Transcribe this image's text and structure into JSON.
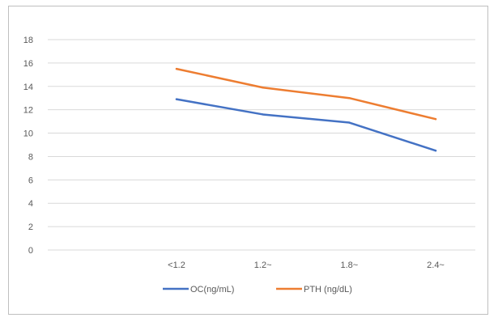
{
  "chart_data": {
    "type": "line",
    "title": "",
    "xlabel": "",
    "ylabel": "",
    "categories": [
      "<1.2",
      "1.2~",
      "1.8~",
      "2.4~"
    ],
    "ylim": [
      0,
      18
    ],
    "yticks": [
      0,
      2,
      4,
      6,
      8,
      10,
      12,
      14,
      16,
      18
    ],
    "grid": true,
    "legend_position": "bottom",
    "series": [
      {
        "name": "OC(ng/mL)",
        "values": [
          12.9,
          11.6,
          10.9,
          8.5
        ],
        "color": "#4472c4"
      },
      {
        "name": "PTH (ng/dL)",
        "values": [
          15.5,
          13.9,
          13.0,
          11.2
        ],
        "color": "#ed7d31"
      }
    ]
  }
}
